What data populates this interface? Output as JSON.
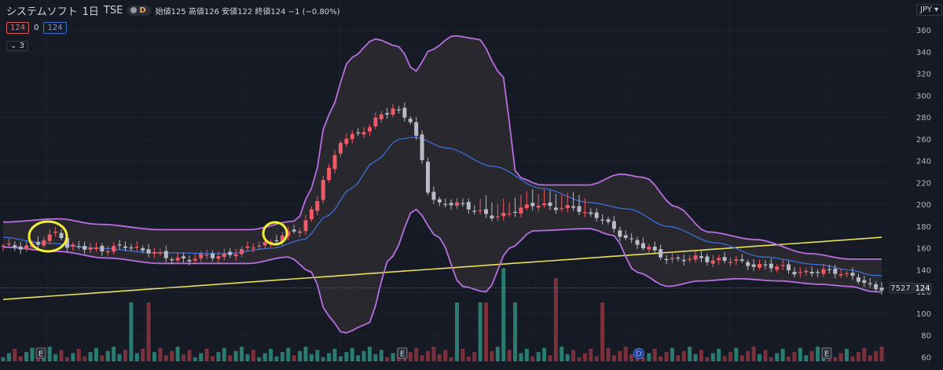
{
  "header": {
    "symbol": "システムソフト",
    "interval": "1日",
    "exchange": "TSE",
    "badge": "D",
    "ohlc": "始値125  高値126  安値122  終値124  −1 (−0.80%)"
  },
  "price_row": {
    "bid": "124",
    "spread": "0",
    "ask": "124"
  },
  "indicator_toggle": "3",
  "currency": "JPY",
  "chart_data": {
    "type": "candlestick",
    "y_axis": {
      "min": 60,
      "max": 370,
      "ticks": [
        60,
        80,
        100,
        120,
        140,
        160,
        180,
        200,
        220,
        240,
        260,
        280,
        300,
        320,
        340,
        360
      ]
    },
    "price_labels": {
      "volume": "7527",
      "last": "124"
    },
    "earnings_markers": [
      "E",
      "E",
      "D",
      "E"
    ],
    "colors": {
      "up": "#f05a67",
      "down": "#b8bcc6",
      "bollinger": "#b86fe0",
      "bollinger_fill": "#2c2c30",
      "ma": "#3b6fd6",
      "long_ma": "#e8e05a",
      "vol_up": "#2e8d7e",
      "vol_down": "#8d3640",
      "highlight": "#f0ef3a"
    }
  }
}
